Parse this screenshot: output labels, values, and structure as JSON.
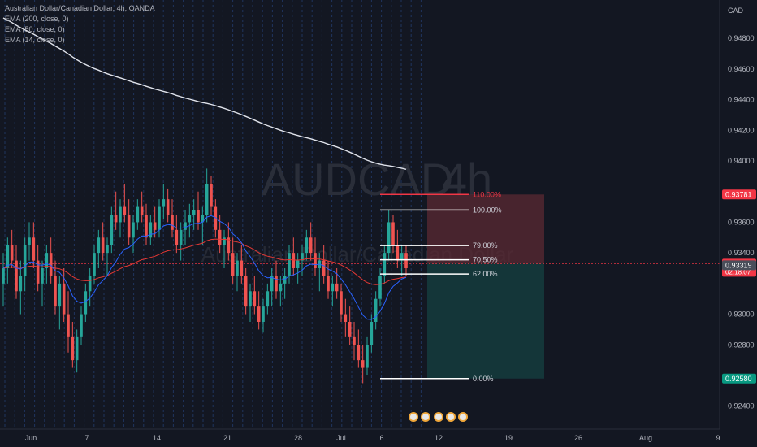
{
  "header": {
    "title": "Australian Dollar/Canadian Dollar, 4h, OANDA",
    "indicators": [
      "EMA (200, close, 0)",
      "EMA (50, close, 0)",
      "EMA (14, close, 0)"
    ]
  },
  "watermark": {
    "symbol": "AUDCAD",
    "timeframe": "4h",
    "name": "Australian Dollar/Canadian Dollar"
  },
  "colors": {
    "background": "#131722",
    "up": "#26a69a",
    "down": "#ef5350",
    "ema200": "#e0e3eb",
    "ema50": "#e53935",
    "ema14": "#2962ff",
    "stop_zone": "#5b2a33",
    "target_zone": "#153c3d",
    "tag_red": "#f23645",
    "tag_green": "#089981",
    "tag_gray": "#4a4e5a",
    "grid_blue": "#2a4d8f"
  },
  "chart_data": {
    "type": "candlestick",
    "title": "Australian Dollar/Canadian Dollar, 4h, OANDA",
    "currency": "CAD",
    "y_ticks": [
      0.948,
      0.946,
      0.944,
      0.942,
      0.94,
      0.936,
      0.934,
      0.93,
      0.928,
      0.924
    ],
    "y_tick_labels": [
      "0.94800",
      "0.94600",
      "0.94400",
      "0.94200",
      "0.94000",
      "0.93600",
      "0.93400",
      "0.93000",
      "0.92800",
      "0.92400"
    ],
    "ylim": [
      0.9225,
      0.9505
    ],
    "x_labels": [
      "Jun",
      "7",
      "14",
      "21",
      "28",
      "Jul",
      "6",
      "12",
      "19",
      "26",
      "Aug",
      "9"
    ],
    "price_tags": [
      {
        "label": "0.93781",
        "value": 0.93781,
        "style": "red"
      },
      {
        "label": "0.93330",
        "value": 0.9333,
        "style": "red",
        "sub": "02:18:07"
      },
      {
        "label": "0.93319",
        "value": 0.93319,
        "style": "gray"
      },
      {
        "label": "0.92580",
        "value": 0.9258,
        "style": "green"
      }
    ],
    "fibonacci": [
      {
        "label": "110.00%",
        "value": 0.93781
      },
      {
        "label": "100.00%",
        "value": 0.9368
      },
      {
        "label": "79.00%",
        "value": 0.93448
      },
      {
        "label": "70.50%",
        "value": 0.93355
      },
      {
        "label": "62.00%",
        "value": 0.93262
      },
      {
        "label": "0.00%",
        "value": 0.9258
      }
    ],
    "position": {
      "entry": 0.9333,
      "stop": 0.93781,
      "target": 0.9258
    },
    "ohlc_source": "approximate visual reconstruction",
    "candles": [
      [
        0.932,
        0.934,
        0.9305,
        0.933
      ],
      [
        0.933,
        0.935,
        0.932,
        0.9345
      ],
      [
        0.9345,
        0.9355,
        0.933,
        0.9335
      ],
      [
        0.9335,
        0.9345,
        0.931,
        0.9315
      ],
      [
        0.9315,
        0.9335,
        0.93,
        0.9325
      ],
      [
        0.9325,
        0.935,
        0.9315,
        0.9345
      ],
      [
        0.9345,
        0.936,
        0.9335,
        0.935
      ],
      [
        0.935,
        0.936,
        0.933,
        0.9335
      ],
      [
        0.9335,
        0.9345,
        0.9315,
        0.932
      ],
      [
        0.932,
        0.9335,
        0.9305,
        0.933
      ],
      [
        0.933,
        0.9345,
        0.932,
        0.934
      ],
      [
        0.934,
        0.935,
        0.932,
        0.9325
      ],
      [
        0.9325,
        0.9335,
        0.93,
        0.9305
      ],
      [
        0.9305,
        0.9325,
        0.929,
        0.932
      ],
      [
        0.932,
        0.933,
        0.9295,
        0.93
      ],
      [
        0.93,
        0.9315,
        0.9275,
        0.9285
      ],
      [
        0.9285,
        0.9295,
        0.9265,
        0.927
      ],
      [
        0.927,
        0.929,
        0.9262,
        0.9285
      ],
      [
        0.9285,
        0.9305,
        0.928,
        0.93
      ],
      [
        0.93,
        0.932,
        0.9295,
        0.9315
      ],
      [
        0.9315,
        0.933,
        0.9305,
        0.9325
      ],
      [
        0.9325,
        0.9345,
        0.932,
        0.934
      ],
      [
        0.934,
        0.9355,
        0.933,
        0.935
      ],
      [
        0.935,
        0.936,
        0.9335,
        0.934
      ],
      [
        0.934,
        0.935,
        0.9325,
        0.9345
      ],
      [
        0.9345,
        0.937,
        0.934,
        0.9365
      ],
      [
        0.9365,
        0.938,
        0.9355,
        0.936
      ],
      [
        0.936,
        0.9375,
        0.935,
        0.937
      ],
      [
        0.937,
        0.9385,
        0.936,
        0.9365
      ],
      [
        0.9365,
        0.9375,
        0.9345,
        0.935
      ],
      [
        0.935,
        0.9365,
        0.934,
        0.936
      ],
      [
        0.936,
        0.9375,
        0.9355,
        0.937
      ],
      [
        0.937,
        0.938,
        0.936,
        0.9365
      ],
      [
        0.9365,
        0.9372,
        0.9345,
        0.935
      ],
      [
        0.935,
        0.9365,
        0.9345,
        0.936
      ],
      [
        0.936,
        0.937,
        0.935,
        0.9355
      ],
      [
        0.9355,
        0.9375,
        0.935,
        0.937
      ],
      [
        0.937,
        0.9385,
        0.9362,
        0.9375
      ],
      [
        0.9375,
        0.9382,
        0.936,
        0.9365
      ],
      [
        0.9365,
        0.9375,
        0.935,
        0.9355
      ],
      [
        0.9355,
        0.9365,
        0.934,
        0.9345
      ],
      [
        0.9345,
        0.936,
        0.9335,
        0.9355
      ],
      [
        0.9355,
        0.9368,
        0.9345,
        0.936
      ],
      [
        0.936,
        0.9372,
        0.935,
        0.9365
      ],
      [
        0.9365,
        0.9375,
        0.9355,
        0.9368
      ],
      [
        0.9368,
        0.938,
        0.9355,
        0.936
      ],
      [
        0.936,
        0.937,
        0.9345,
        0.9365
      ],
      [
        0.9365,
        0.9395,
        0.936,
        0.9385
      ],
      [
        0.9385,
        0.939,
        0.9365,
        0.937
      ],
      [
        0.937,
        0.9375,
        0.935,
        0.9355
      ],
      [
        0.9355,
        0.9365,
        0.934,
        0.9345
      ],
      [
        0.9345,
        0.9355,
        0.933,
        0.935
      ],
      [
        0.935,
        0.936,
        0.9335,
        0.934
      ],
      [
        0.934,
        0.935,
        0.932,
        0.9325
      ],
      [
        0.9325,
        0.934,
        0.9315,
        0.9335
      ],
      [
        0.9335,
        0.9345,
        0.932,
        0.9325
      ],
      [
        0.9325,
        0.933,
        0.93,
        0.9305
      ],
      [
        0.9305,
        0.932,
        0.9295,
        0.9315
      ],
      [
        0.9315,
        0.9325,
        0.93,
        0.9305
      ],
      [
        0.9305,
        0.9315,
        0.929,
        0.9295
      ],
      [
        0.9295,
        0.931,
        0.9288,
        0.9305
      ],
      [
        0.9305,
        0.932,
        0.93,
        0.9315
      ],
      [
        0.9315,
        0.933,
        0.9305,
        0.9325
      ],
      [
        0.9325,
        0.9335,
        0.931,
        0.9315
      ],
      [
        0.9315,
        0.9325,
        0.9305,
        0.932
      ],
      [
        0.932,
        0.933,
        0.931,
        0.9325
      ],
      [
        0.9325,
        0.9345,
        0.932,
        0.934
      ],
      [
        0.934,
        0.935,
        0.9325,
        0.933
      ],
      [
        0.933,
        0.934,
        0.932,
        0.9335
      ],
      [
        0.9335,
        0.9345,
        0.9325,
        0.934
      ],
      [
        0.934,
        0.9355,
        0.9335,
        0.935
      ],
      [
        0.935,
        0.936,
        0.9335,
        0.934
      ],
      [
        0.934,
        0.935,
        0.9325,
        0.933
      ],
      [
        0.933,
        0.934,
        0.9315,
        0.9335
      ],
      [
        0.9335,
        0.9345,
        0.932,
        0.9325
      ],
      [
        0.9325,
        0.9335,
        0.931,
        0.9315
      ],
      [
        0.9315,
        0.9325,
        0.9305,
        0.932
      ],
      [
        0.932,
        0.933,
        0.931,
        0.9315
      ],
      [
        0.9315,
        0.932,
        0.9295,
        0.93
      ],
      [
        0.93,
        0.931,
        0.9285,
        0.9295
      ],
      [
        0.9295,
        0.9305,
        0.928,
        0.9285
      ],
      [
        0.9285,
        0.9295,
        0.927,
        0.928
      ],
      [
        0.928,
        0.929,
        0.9265,
        0.927
      ],
      [
        0.927,
        0.928,
        0.9255,
        0.9265
      ],
      [
        0.9265,
        0.9285,
        0.926,
        0.928
      ],
      [
        0.928,
        0.93,
        0.9275,
        0.9295
      ],
      [
        0.9295,
        0.9315,
        0.929,
        0.931
      ],
      [
        0.931,
        0.933,
        0.9305,
        0.9325
      ],
      [
        0.9325,
        0.9345,
        0.932,
        0.934
      ],
      [
        0.934,
        0.9368,
        0.9335,
        0.936
      ],
      [
        0.936,
        0.9365,
        0.934,
        0.9345
      ],
      [
        0.9345,
        0.9355,
        0.933,
        0.9335
      ],
      [
        0.9335,
        0.9345,
        0.9325,
        0.934
      ],
      [
        0.934,
        0.9345,
        0.9325,
        0.933
      ]
    ]
  }
}
